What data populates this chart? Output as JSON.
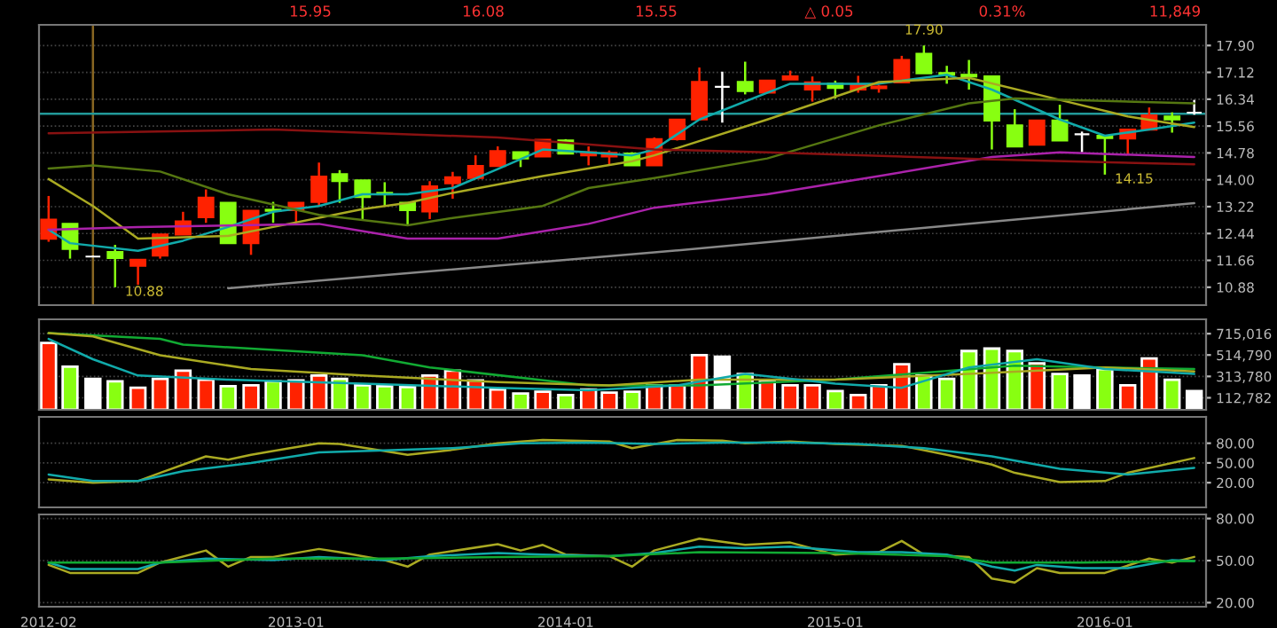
{
  "chart_data": [
    {
      "type": "candlestick",
      "annotations": [
        "15.95",
        "16.08",
        "15.55",
        "△ 0.05",
        "0.31%",
        "11,849",
        {
          "text": "10.88",
          "x": "2012-05",
          "y": 10.88
        },
        {
          "text": "17.90",
          "x": "2015-05",
          "y": 17.9
        },
        {
          "text": "14.15",
          "x": "2016-01",
          "y": 14.15
        }
      ],
      "x": [
        "2012-02",
        "2012-03",
        "2012-04",
        "2012-05",
        "2012-06",
        "2012-07",
        "2012-08",
        "2012-09",
        "2012-10",
        "2012-11",
        "2012-12",
        "2013-01",
        "2013-02",
        "2013-03",
        "2013-04",
        "2013-05",
        "2013-06",
        "2013-07",
        "2013-08",
        "2013-09",
        "2013-10",
        "2013-11",
        "2013-12",
        "2014-01",
        "2014-02",
        "2014-03",
        "2014-04",
        "2014-05",
        "2014-06",
        "2014-07",
        "2014-08",
        "2014-09",
        "2014-10",
        "2014-11",
        "2014-12",
        "2015-01",
        "2015-02",
        "2015-03",
        "2015-04",
        "2015-05",
        "2015-06",
        "2015-07",
        "2015-08",
        "2015-09",
        "2015-10",
        "2015-11",
        "2015-12",
        "2016-01",
        "2016-02",
        "2016-03",
        "2016-04",
        "2016-05"
      ],
      "ohlc": [
        [
          12.29,
          13.53,
          12.2,
          12.84
        ],
        [
          12.72,
          12.72,
          11.71,
          11.99
        ],
        [
          11.77,
          11.8,
          11.75,
          11.77
        ],
        [
          11.9,
          12.11,
          10.88,
          11.73
        ],
        [
          11.5,
          11.68,
          10.95,
          11.68
        ],
        [
          11.8,
          12.41,
          11.71,
          12.41
        ],
        [
          12.41,
          13.07,
          12.41,
          12.79
        ],
        [
          12.91,
          13.72,
          12.75,
          13.48
        ],
        [
          13.33,
          13.33,
          12.16,
          12.16
        ],
        [
          12.16,
          13.1,
          11.82,
          13.1
        ],
        [
          13.13,
          13.36,
          12.75,
          13.1
        ],
        [
          13.12,
          13.33,
          12.75,
          13.33
        ],
        [
          13.36,
          14.5,
          13.24,
          14.09
        ],
        [
          14.16,
          14.28,
          13.33,
          13.96
        ],
        [
          13.98,
          13.98,
          12.86,
          13.5
        ],
        [
          13.62,
          13.93,
          13.24,
          13.58
        ],
        [
          13.33,
          13.33,
          12.67,
          13.12
        ],
        [
          13.08,
          13.96,
          12.86,
          13.81
        ],
        [
          13.9,
          14.23,
          13.45,
          14.07
        ],
        [
          14.05,
          14.71,
          14.05,
          14.4
        ],
        [
          14.4,
          14.97,
          14.4,
          14.83
        ],
        [
          14.8,
          14.8,
          14.37,
          14.62
        ],
        [
          14.68,
          15.16,
          14.68,
          15.16
        ],
        [
          15.14,
          15.18,
          14.76,
          14.76
        ],
        [
          14.71,
          14.97,
          14.42,
          14.8
        ],
        [
          14.68,
          14.85,
          14.42,
          14.78
        ],
        [
          14.76,
          14.8,
          14.42,
          14.42
        ],
        [
          14.42,
          15.23,
          14.42,
          15.18
        ],
        [
          15.18,
          15.75,
          15.14,
          15.75
        ],
        [
          15.75,
          17.26,
          15.75,
          16.84
        ],
        [
          16.7,
          17.14,
          15.66,
          16.7
        ],
        [
          16.84,
          17.43,
          16.48,
          16.58
        ],
        [
          16.53,
          16.88,
          16.53,
          16.88
        ],
        [
          16.91,
          17.17,
          16.91,
          17.0
        ],
        [
          16.62,
          17.0,
          16.27,
          16.83
        ],
        [
          16.79,
          16.88,
          16.36,
          16.67
        ],
        [
          16.62,
          17.02,
          16.53,
          16.76
        ],
        [
          16.66,
          16.76,
          16.53,
          16.71
        ],
        [
          16.83,
          17.6,
          16.83,
          17.48
        ],
        [
          17.66,
          17.9,
          17.09,
          17.09
        ],
        [
          17.1,
          17.31,
          16.79,
          17.05
        ],
        [
          17.05,
          17.48,
          16.62,
          17.0
        ],
        [
          17.0,
          17.0,
          14.88,
          15.72
        ],
        [
          15.58,
          16.05,
          14.97,
          14.97
        ],
        [
          15.02,
          15.72,
          15.02,
          15.72
        ],
        [
          15.72,
          16.18,
          15.14,
          15.14
        ],
        [
          15.32,
          15.4,
          14.8,
          15.32
        ],
        [
          15.28,
          15.28,
          14.15,
          15.21
        ],
        [
          15.2,
          15.46,
          14.71,
          15.46
        ],
        [
          15.46,
          16.1,
          15.46,
          15.87
        ],
        [
          15.84,
          15.96,
          15.37,
          15.75
        ],
        [
          15.95,
          16.32,
          15.89,
          15.95
        ]
      ],
      "colors": [
        "#ff2200",
        "#88ff11",
        "#ffffff",
        "#88ff11",
        "#ff2200",
        "#ff2200",
        "#ff2200",
        "#ff2200",
        "#88ff11",
        "#ff2200",
        "#88ff11",
        "#ff2200",
        "#ff2200",
        "#88ff11",
        "#88ff11",
        "#88ff11",
        "#88ff11",
        "#ff2200",
        "#ff2200",
        "#ff2200",
        "#ff2200",
        "#88ff11",
        "#ff2200",
        "#88ff11",
        "#ff2200",
        "#ff2200",
        "#88ff11",
        "#ff2200",
        "#ff2200",
        "#ff2200",
        "#ffffff",
        "#88ff11",
        "#ff2200",
        "#ff2200",
        "#ff2200",
        "#88ff11",
        "#ff2200",
        "#ff2200",
        "#ff2200",
        "#88ff11",
        "#88ff11",
        "#88ff11",
        "#88ff11",
        "#88ff11",
        "#ff2200",
        "#88ff11",
        "#ffffff",
        "#88ff11",
        "#ff2200",
        "#ff2200",
        "#88ff11",
        "#ffffff"
      ],
      "series": [
        {
          "type": "line",
          "color": "#11aaaa",
          "x": [
            "2012-02",
            "2012-03",
            "2012-06",
            "2012-08",
            "2012-10",
            "2012-12",
            "2013-02",
            "2013-04",
            "2013-06",
            "2013-08",
            "2013-10",
            "2013-12",
            "2014-02",
            "2014-04",
            "2014-05",
            "2014-07",
            "2014-11",
            "2015-03",
            "2015-06",
            "2015-08",
            "2015-11",
            "2016-01",
            "2016-03",
            "2016-05"
          ],
          "values": [
            12.55,
            12.16,
            11.94,
            12.23,
            12.63,
            13.07,
            13.24,
            13.58,
            13.58,
            13.76,
            14.31,
            14.88,
            14.8,
            14.71,
            14.88,
            15.75,
            16.79,
            16.79,
            17.05,
            16.62,
            15.75,
            15.28,
            15.46,
            15.66
          ]
        },
        {
          "type": "line",
          "color": "#aaaa22",
          "x": [
            "2012-02",
            "2012-04",
            "2012-06",
            "2012-10",
            "2012-12",
            "2013-04",
            "2013-06",
            "2013-08",
            "2013-12",
            "2014-04",
            "2014-05",
            "2014-10",
            "2015-03",
            "2015-07",
            "2015-11",
            "2016-02",
            "2016-05"
          ],
          "values": [
            14.02,
            13.24,
            12.29,
            12.37,
            12.63,
            13.15,
            13.33,
            13.62,
            14.11,
            14.54,
            14.71,
            15.75,
            16.84,
            16.96,
            16.32,
            15.84,
            15.53
          ]
        },
        {
          "type": "line",
          "color": "#557711",
          "x": [
            "2012-02",
            "2012-04",
            "2012-07",
            "2012-10",
            "2013-02",
            "2013-06",
            "2013-08",
            "2013-12",
            "2014-02",
            "2014-05",
            "2014-10",
            "2015-03",
            "2015-07",
            "2015-09",
            "2016-05"
          ],
          "values": [
            14.33,
            14.42,
            14.24,
            13.58,
            12.98,
            12.68,
            12.89,
            13.24,
            13.76,
            14.05,
            14.62,
            15.58,
            16.22,
            16.36,
            16.22
          ]
        },
        {
          "type": "line",
          "color": "#aa22aa",
          "x": [
            "2012-02",
            "2012-06",
            "2013-02",
            "2013-06",
            "2013-10",
            "2014-02",
            "2014-05",
            "2014-10",
            "2015-03",
            "2015-08",
            "2015-11",
            "2016-05"
          ],
          "values": [
            12.55,
            12.63,
            12.72,
            12.29,
            12.29,
            12.72,
            13.19,
            13.58,
            14.11,
            14.66,
            14.8,
            14.66
          ]
        },
        {
          "type": "line",
          "color": "#881111",
          "x": [
            "2012-02",
            "2012-12",
            "2013-10",
            "2014-05",
            "2014-10",
            "2015-08",
            "2016-05"
          ],
          "values": [
            15.35,
            15.46,
            15.23,
            14.88,
            14.8,
            14.59,
            14.45
          ]
        },
        {
          "type": "line",
          "color": "#888888",
          "x": [
            "2012-10",
            "2014-05",
            "2016-05"
          ],
          "values": [
            10.85,
            11.89,
            13.32
          ]
        }
      ],
      "ref_lines": [
        {
          "axis": "x",
          "value": "2012-04",
          "color": "#886622"
        },
        {
          "axis": "y",
          "value": 15.92,
          "color": "#229999"
        }
      ],
      "xlim": [
        "2012-01-19",
        "2016-05-17"
      ],
      "ylim": [
        10.36,
        18.5
      ],
      "yticks": [
        10.88,
        11.66,
        12.44,
        13.22,
        {
          "value": 14.0,
          "label": "14.00"
        },
        14.78,
        15.56,
        16.34,
        17.12,
        {
          "value": 17.9,
          "label": "17.90"
        }
      ],
      "grid": "y",
      "tick_labels": "y"
    },
    {
      "type": "bar",
      "x": [
        "2012-02",
        "2012-03",
        "2012-04",
        "2012-05",
        "2012-06",
        "2012-07",
        "2012-08",
        "2012-09",
        "2012-10",
        "2012-11",
        "2012-12",
        "2013-01",
        "2013-02",
        "2013-03",
        "2013-04",
        "2013-05",
        "2013-06",
        "2013-07",
        "2013-08",
        "2013-09",
        "2013-10",
        "2013-11",
        "2013-12",
        "2014-01",
        "2014-02",
        "2014-03",
        "2014-04",
        "2014-05",
        "2014-06",
        "2014-07",
        "2014-08",
        "2014-09",
        "2014-10",
        "2014-11",
        "2014-12",
        "2015-01",
        "2015-02",
        "2015-03",
        "2015-04",
        "2015-05",
        "2015-06",
        "2015-07",
        "2015-08",
        "2015-09",
        "2015-10",
        "2015-11",
        "2015-12",
        "2016-01",
        "2016-02",
        "2016-03",
        "2016-04",
        "2016-05"
      ],
      "values": [
        628000,
        406000,
        291000,
        268000,
        207000,
        291000,
        368000,
        283000,
        222000,
        230000,
        268000,
        276000,
        322000,
        291000,
        230000,
        222000,
        214000,
        322000,
        368000,
        276000,
        191000,
        153000,
        169000,
        138000,
        191000,
        161000,
        169000,
        230000,
        230000,
        513000,
        498000,
        337000,
        276000,
        230000,
        230000,
        176000,
        138000,
        230000,
        429000,
        322000,
        291000,
        552000,
        575000,
        552000,
        437000,
        337000,
        322000,
        383000,
        230000,
        483000,
        283000,
        176000
      ],
      "colors": [
        "#ff2200",
        "#88ff11",
        "#ffffff",
        "#88ff11",
        "#ff2200",
        "#ff2200",
        "#ff2200",
        "#ff2200",
        "#88ff11",
        "#ff2200",
        "#88ff11",
        "#ff2200",
        "#ff2200",
        "#88ff11",
        "#88ff11",
        "#88ff11",
        "#88ff11",
        "#ff2200",
        "#ff2200",
        "#ff2200",
        "#ff2200",
        "#88ff11",
        "#ff2200",
        "#88ff11",
        "#ff2200",
        "#ff2200",
        "#88ff11",
        "#ff2200",
        "#ff2200",
        "#ff2200",
        "#ffffff",
        "#88ff11",
        "#ff2200",
        "#ff2200",
        "#ff2200",
        "#88ff11",
        "#ff2200",
        "#ff2200",
        "#ff2200",
        "#88ff11",
        "#88ff11",
        "#88ff11",
        "#88ff11",
        "#88ff11",
        "#ff2200",
        "#88ff11",
        "#ffffff",
        "#88ff11",
        "#ff2200",
        "#ff2200",
        "#88ff11",
        "#ffffff"
      ],
      "series": [
        {
          "type": "line",
          "color": "#11aa33",
          "x": [
            "2012-02",
            "2012-07",
            "2012-08",
            "2013-04",
            "2013-07",
            "2014-02",
            "2014-07",
            "2015-01",
            "2015-09",
            "2016-05"
          ],
          "values": [
            720000,
            666000,
            613000,
            513000,
            398000,
            230000,
            230000,
            283000,
            414000,
            383000
          ]
        },
        {
          "type": "line",
          "color": "#aaaa22",
          "x": [
            "2012-02",
            "2012-04",
            "2012-07",
            "2012-11",
            "2013-04",
            "2013-10",
            "2014-03",
            "2014-07",
            "2015-01",
            "2015-07",
            "2016-01",
            "2016-05"
          ],
          "values": [
            720000,
            689000,
            513000,
            383000,
            322000,
            260000,
            230000,
            283000,
            283000,
            337000,
            398000,
            360000
          ]
        },
        {
          "type": "line",
          "color": "#11aaaa",
          "x": [
            "2012-02",
            "2012-04",
            "2012-06",
            "2012-10",
            "2013-04",
            "2013-10",
            "2014-02",
            "2014-06",
            "2014-09",
            "2015-01",
            "2015-04",
            "2015-07",
            "2015-10",
            "2016-01",
            "2016-05"
          ],
          "values": [
            666000,
            475000,
            322000,
            283000,
            245000,
            207000,
            184000,
            230000,
            337000,
            245000,
            207000,
            398000,
            475000,
            383000,
            337000
          ]
        }
      ],
      "xlim": [
        "2012-01-19",
        "2016-05-17"
      ],
      "ylim": [
        0,
        850000
      ],
      "yticks": [
        {
          "value": 112782,
          "label": "112,782"
        },
        {
          "value": 313780,
          "label": "313,780"
        },
        {
          "value": 514790,
          "label": "514,790"
        },
        {
          "value": 715016,
          "label": "715,016"
        }
      ],
      "grid": "y",
      "tick_labels": "y"
    },
    {
      "type": "line",
      "series": [
        {
          "color": "#aaaa22",
          "x": [
            "2012-02",
            "2012-04",
            "2012-06",
            "2012-07",
            "2012-09",
            "2012-10",
            "2012-11",
            "2013-02",
            "2013-03",
            "2013-06",
            "2013-08",
            "2013-10",
            "2013-12",
            "2014-03",
            "2014-04",
            "2014-06",
            "2014-08",
            "2014-09",
            "2014-11",
            "2015-01",
            "2015-04",
            "2015-06",
            "2015-08",
            "2015-09",
            "2015-11",
            "2016-01",
            "2016-02",
            "2016-05"
          ],
          "values": [
            25,
            20,
            22.5,
            35,
            60,
            55,
            62.5,
            80,
            79,
            62.5,
            70,
            80,
            85,
            82.5,
            72.5,
            85,
            84,
            80,
            82.5,
            79,
            76,
            62.5,
            47.5,
            35,
            21,
            22.5,
            35,
            57.5
          ]
        },
        {
          "color": "#11aaaa",
          "x": [
            "2012-02",
            "2012-04",
            "2012-06",
            "2012-08",
            "2012-11",
            "2013-02",
            "2013-05",
            "2013-08",
            "2013-11",
            "2014-02",
            "2014-05",
            "2014-08",
            "2014-11",
            "2015-02",
            "2015-05",
            "2015-08",
            "2015-11",
            "2016-02",
            "2016-05"
          ],
          "values": [
            32.5,
            22.5,
            22.5,
            37.5,
            50,
            66,
            69,
            72.5,
            80,
            81,
            79,
            81,
            81,
            79,
            72.5,
            60,
            41,
            32.5,
            42.5
          ]
        }
      ],
      "xlim": [
        "2012-01-19",
        "2016-05-17"
      ],
      "ylim": [
        -17.5,
        120
      ],
      "yticks": [
        {
          "value": 20,
          "label": "20.00"
        },
        {
          "value": 50,
          "label": "50.00"
        },
        {
          "value": 80,
          "label": "80.00"
        }
      ],
      "grid": "y",
      "tick_labels": "y"
    },
    {
      "type": "line",
      "series": [
        {
          "color": "#aaaa22",
          "x": [
            "2012-02",
            "2012-03",
            "2012-06",
            "2012-07",
            "2012-09",
            "2012-10",
            "2012-11",
            "2012-12",
            "2013-02",
            "2013-03",
            "2013-05",
            "2013-06",
            "2013-07",
            "2013-10",
            "2013-11",
            "2013-12",
            "2014-01",
            "2014-03",
            "2014-04",
            "2014-05",
            "2014-07",
            "2014-09",
            "2014-11",
            "2015-01",
            "2015-03",
            "2015-04",
            "2015-05",
            "2015-07",
            "2015-08",
            "2015-09",
            "2015-10",
            "2015-11",
            "2016-01",
            "2016-03",
            "2016-04",
            "2016-05"
          ],
          "values": [
            46.9,
            41.2,
            41.2,
            48.6,
            57.2,
            45.7,
            52.6,
            52.6,
            58.3,
            56.0,
            50.3,
            45.7,
            54.3,
            61.7,
            57.2,
            61.2,
            54.3,
            53.2,
            45.7,
            57.2,
            65.7,
            61.2,
            62.9,
            54.3,
            56.0,
            64.0,
            54.3,
            52.6,
            37.2,
            34.3,
            44.6,
            41.2,
            41.2,
            51.4,
            48.6,
            52.6
          ]
        },
        {
          "color": "#11aaaa",
          "x": [
            "2012-02",
            "2012-03",
            "2012-06",
            "2012-07",
            "2012-09",
            "2012-12",
            "2013-02",
            "2013-05",
            "2013-07",
            "2013-10",
            "2013-12",
            "2014-03",
            "2014-05",
            "2014-07",
            "2014-09",
            "2014-11",
            "2015-02",
            "2015-04",
            "2015-06",
            "2015-08",
            "2015-09",
            "2015-10",
            "2015-12",
            "2016-02",
            "2016-04",
            "2016-05"
          ],
          "values": [
            48.6,
            44,
            44,
            48.6,
            51.4,
            50.3,
            52.6,
            50.3,
            53.2,
            55.4,
            54.3,
            53.2,
            55.4,
            60,
            58.9,
            60,
            56,
            56,
            54.3,
            45.7,
            42.9,
            46.9,
            44.6,
            44.6,
            50.3,
            49.7
          ]
        },
        {
          "color": "#11aa33",
          "x": [
            "2012-02",
            "2012-07",
            "2012-12",
            "2013-05",
            "2013-10",
            "2014-03",
            "2014-07",
            "2015-01",
            "2015-06",
            "2015-08",
            "2015-12",
            "2016-05"
          ],
          "values": [
            48.6,
            48.6,
            51.4,
            51.4,
            52.6,
            53.2,
            56,
            55.4,
            53.2,
            48.6,
            48.6,
            49.7
          ]
        }
      ],
      "xlim": [
        "2012-01-19",
        "2016-05-17"
      ],
      "ylim": [
        17.1,
        82.9
      ],
      "xticks": [
        "2012-02",
        "2013-01",
        "2014-01",
        "2015-01",
        "2016-01"
      ],
      "yticks": [
        {
          "value": 20,
          "label": "20.00"
        },
        {
          "value": 50,
          "label": "50.00"
        },
        {
          "value": 80,
          "label": "80.00"
        }
      ],
      "grid": "y"
    }
  ]
}
